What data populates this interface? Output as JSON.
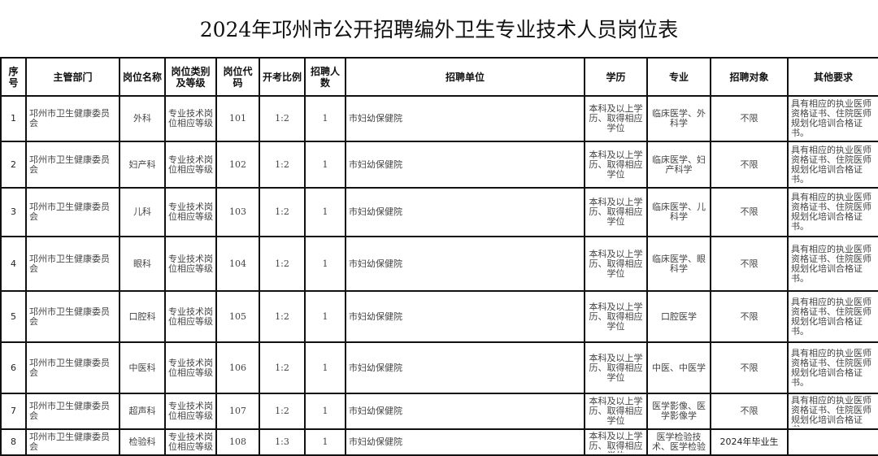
{
  "title": "2024年邛州市公开招聘编外卫生专业技术人员岗位表",
  "headers": [
    "序号",
    "主管部门",
    "岗位名称",
    "岗位类别及等级",
    "岗位代码",
    "开考比例",
    "招聘人数",
    "招聘单位",
    "学历",
    "专业",
    "招聘对象",
    "其他要求"
  ],
  "rows": [
    [
      "1",
      "邛州市卫生健康委员会",
      "外科",
      "专业技术岗位相应等级",
      "101",
      "1:2",
      "1",
      "市妇幼保健院",
      "本科及以上学历、取得相应学位",
      "临床医学、外科学",
      "不限",
      "具有相应的执业医师资格证书、住院医师规划化培训合格证书。"
    ],
    [
      "2",
      "邛州市卫生健康委员会",
      "妇产科",
      "专业技术岗位相应等级",
      "102",
      "1:2",
      "1",
      "市妇幼保健院",
      "本科及以上学历、取得相应学位",
      "临床医学、妇产科学",
      "不限",
      "具有相应的执业医师资格证书、住院医师规划化培训合格证书。"
    ],
    [
      "3",
      "邛州市卫生健康委员会",
      "儿科",
      "专业技术岗位相应等级",
      "103",
      "1:2",
      "1",
      "市妇幼保健院",
      "本科及以上学历、取得相应学位",
      "临床医学、儿科学",
      "不限",
      "具有相应的执业医师资格证书、住院医师规划化培训合格证书。"
    ],
    [
      "4",
      "邛州市卫生健康委员会",
      "眼科",
      "专业技术岗位相应等级",
      "104",
      "1:2",
      "1",
      "市妇幼保健院",
      "本科及以上学历、取得相应学位",
      "临床医学、眼科学",
      "不限",
      "具有相应的执业医师资格证书、住院医师规划化培训合格证书。"
    ],
    [
      "5",
      "邛州市卫生健康委员会",
      "口腔科",
      "专业技术岗位相应等级",
      "105",
      "1:2",
      "1",
      "市妇幼保健院",
      "本科及以上学历、取得相应学位",
      "口腔医学",
      "不限",
      "具有相应的执业医师资格证书、住院医师规划化培训合格证书。"
    ],
    [
      "6",
      "邛州市卫生健康委员会",
      "中医科",
      "专业技术岗位相应等级",
      "106",
      "1:2",
      "1",
      "市妇幼保健院",
      "本科及以上学历、取得相应学位",
      "中医、中医学",
      "不限",
      "具有相应的执业医师资格证书、住院医师规划化培训合格证书。"
    ],
    [
      "7",
      "邛州市卫生健康委员会",
      "超声科",
      "专业技术岗位相应等级",
      "107",
      "1:2",
      "1",
      "市妇幼保健院",
      "本科及以上学历、取得相应学位",
      "医学影像、医学影像学",
      "不限",
      "具有相应的执业医师资格证书、住院医师规划化培训合格证书。"
    ],
    [
      "8",
      "邛州市卫生健康委员会",
      "检验科",
      "专业技术岗位相应等级",
      "108",
      "1:3",
      "1",
      "市妇幼保健院",
      "本科及以上学历、取得相应学位",
      "医学检验技术、医学检验",
      "2024年毕业生",
      ""
    ]
  ]
}
